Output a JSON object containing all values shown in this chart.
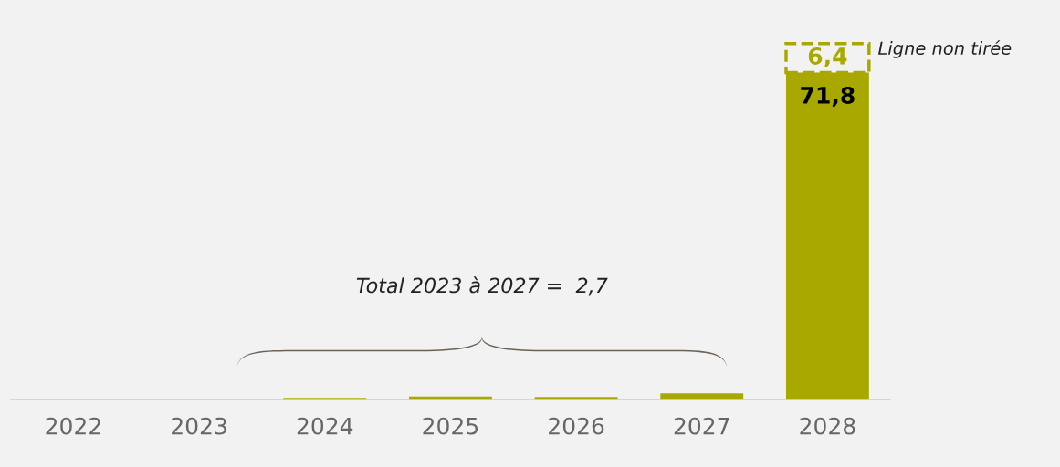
{
  "chart_data": {
    "type": "bar",
    "stacked": true,
    "categories": [
      "2022",
      "2023",
      "2024",
      "2025",
      "2026",
      "2027",
      "2028"
    ],
    "series": [
      {
        "color": "#a8a800",
        "values": [
          null,
          null,
          0.3,
          0.6,
          0.5,
          1.3,
          71.8
        ],
        "value_labels": [
          null,
          null,
          null,
          null,
          null,
          null,
          "71,8"
        ]
      },
      {
        "name": "Ligne non tirée",
        "color": "#a8a800",
        "line_style": "dashed",
        "values": [
          null,
          null,
          null,
          null,
          null,
          null,
          6.4
        ],
        "value_labels": [
          null,
          null,
          null,
          null,
          null,
          null,
          "6,4"
        ]
      }
    ],
    "annotations": [
      "Total 2023 à 2027 =  2,7"
    ],
    "grid": false,
    "legend": false
  }
}
